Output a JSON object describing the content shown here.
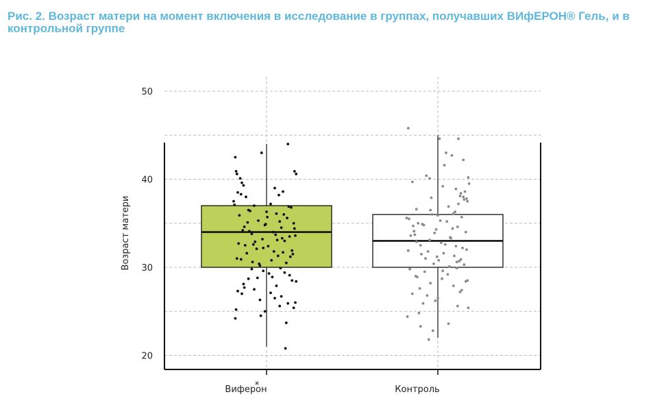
{
  "figure": {
    "title": "Рис. 2. Возраст матери на момент включения в исследование в группах, получавших ВИфЕРОН® Гель, и в контрольной группе"
  },
  "colors": {
    "title": "#5fb8dc",
    "viferon_box": "#bcd05a",
    "control_box": "#ffffff",
    "viferon_points": "#111111",
    "control_points": "#8a8a8a",
    "grid": "#bbbbbb"
  },
  "chart_data": {
    "type": "box",
    "ylabel": "Возраст матери",
    "xlabel": "",
    "ylim": [
      18.5,
      51
    ],
    "yticks": [
      20,
      30,
      40,
      50
    ],
    "grid": true,
    "categories": [
      "Виферон",
      "Контроль"
    ],
    "boxes": [
      {
        "category": "Виферон",
        "q1": 30,
        "median": 34,
        "q3": 37,
        "whisker_low": 21,
        "whisker_high": 44,
        "points": [
          42.5,
          40.9,
          40.6,
          40.1,
          39.6,
          39.3,
          38.5,
          38.3,
          38.0,
          43.0,
          44.0,
          40.9,
          40.6,
          39.0,
          38.6,
          38.2,
          37.5,
          37.2,
          37.0,
          36.8,
          36.5,
          36.1,
          35.9,
          35.6,
          35.3,
          35.0,
          34.8,
          34.5,
          34.2,
          34.0,
          33.8,
          33.5,
          33.2,
          33.0,
          32.7,
          32.4,
          32.1,
          31.9,
          31.6,
          31.3,
          31.0,
          30.8,
          30.5,
          30.2,
          36.4,
          35.2,
          34.6,
          33.6,
          32.9,
          31.8,
          30.9,
          36.9,
          35.7,
          34.1,
          33.3,
          32.2,
          31.5,
          30.6,
          37.1,
          36.0,
          34.9,
          33.1,
          32.5,
          31.2,
          29.9,
          29.6,
          29.4,
          29.1,
          28.9,
          28.7,
          28.4,
          28.1,
          27.9,
          27.5,
          27.3,
          27.1,
          26.7,
          26.3,
          26.0,
          25.9,
          25.6,
          25.2,
          25.0,
          24.5,
          24.2,
          23.7,
          20.8,
          29.8,
          28.5,
          27.7,
          26.5,
          25.4,
          29.3,
          28.8,
          27.0,
          36.3,
          35.1,
          34.4,
          33.7,
          32.6,
          31.7,
          30.4
        ],
        "jitter": [
          -0.38,
          -0.37,
          -0.36,
          -0.32,
          -0.3,
          -0.28,
          -0.35,
          -0.31,
          -0.25,
          -0.06,
          0.26,
          0.34,
          0.36,
          0.1,
          0.2,
          0.15,
          -0.4,
          0.05,
          -0.15,
          0.3,
          -0.22,
          0.12,
          -0.33,
          0.25,
          -0.1,
          0.33,
          -0.02,
          0.18,
          -0.29,
          0.08,
          -0.18,
          0.28,
          -0.05,
          0.22,
          -0.34,
          0.02,
          -0.12,
          0.31,
          -0.24,
          0.14,
          -0.36,
          0.06,
          0.24,
          -0.08,
          -0.2,
          0.16,
          -0.27,
          0.35,
          -0.14,
          0.09,
          -0.31,
          0.27,
          0.01,
          -0.21,
          0.19,
          -0.04,
          0.32,
          -0.17,
          -0.39,
          0.21,
          -0.01,
          0.13,
          -0.26,
          0.29,
          0.17,
          -0.04,
          0.22,
          0.28,
          0.07,
          -0.22,
          0.36,
          -0.28,
          0.12,
          -0.15,
          -0.35,
          0.05,
          0.18,
          -0.08,
          0.35,
          0.26,
          0.16,
          -0.37,
          -0.02,
          -0.07,
          -0.38,
          0.24,
          0.23,
          -0.18,
          0.31,
          -0.27,
          0.1,
          0.33,
          0.03,
          -0.11,
          -0.3,
          0.0,
          -0.23,
          0.34,
          0.11,
          -0.16,
          0.2,
          -0.09
        ]
      },
      {
        "category": "Контроль",
        "q1": 30,
        "median": 33,
        "q3": 36,
        "whisker_low": 22,
        "whisker_high": 45,
        "points": [
          45.8,
          44.6,
          44.6,
          43.0,
          42.7,
          42.2,
          41.6,
          40.4,
          40.1,
          39.7,
          39.5,
          39.2,
          38.6,
          38.1,
          38.0,
          37.8,
          37.5,
          36.9,
          36.6,
          36.3,
          36.0,
          35.7,
          35.5,
          35.2,
          34.9,
          34.6,
          34.3,
          34.0,
          33.7,
          33.4,
          33.1,
          32.8,
          32.5,
          32.2,
          31.9,
          31.6,
          31.3,
          31.0,
          30.7,
          30.4,
          30.1,
          35.9,
          35.0,
          34.4,
          33.6,
          32.6,
          31.8,
          30.9,
          35.3,
          34.1,
          32.4,
          31.2,
          30.3,
          29.8,
          29.5,
          29.2,
          29.0,
          28.7,
          28.5,
          28.2,
          27.9,
          27.6,
          27.2,
          27.0,
          26.5,
          26.2,
          25.9,
          25.4,
          24.8,
          24.4,
          23.6,
          23.3,
          22.8,
          21.8,
          30.6,
          33.9,
          36.1,
          34.7,
          32.0,
          29.6,
          28.9,
          27.4,
          26.8,
          25.6,
          37.2,
          38.4,
          37.7,
          36.5,
          35.6,
          34.8,
          33.3,
          32.9,
          31.5,
          30.8,
          29.9,
          28.4,
          40.2,
          38.9,
          37.9
        ],
        "jitter": [
          -0.36,
          0.02,
          0.25,
          0.1,
          0.17,
          0.31,
          0.08,
          -0.14,
          -0.1,
          -0.31,
          0.38,
          0.06,
          0.33,
          0.27,
          0.31,
          0.35,
          0.36,
          0.13,
          -0.26,
          0.21,
          -0.07,
          0.29,
          -0.35,
          0.11,
          -0.19,
          0.24,
          -0.02,
          0.34,
          -0.28,
          0.15,
          -0.1,
          0.04,
          -0.21,
          0.3,
          -0.36,
          0.07,
          0.2,
          -0.15,
          0.26,
          -0.05,
          0.14,
          0.0,
          -0.24,
          0.18,
          -0.33,
          0.09,
          -0.12,
          0.28,
          0.03,
          -0.29,
          0.22,
          -0.01,
          0.32,
          -0.34,
          -0.16,
          0.12,
          -0.27,
          0.05,
          0.36,
          -0.09,
          0.19,
          -0.22,
          0.27,
          -0.31,
          0.0,
          -0.03,
          -0.18,
          0.37,
          -0.23,
          -0.37,
          0.13,
          -0.21,
          -0.06,
          -0.11,
          0.23,
          -0.04,
          0.19,
          -0.3,
          0.35,
          0.06,
          -0.25,
          0.29,
          -0.13,
          0.24,
          0.25,
          0.28,
          0.32,
          -0.09,
          -0.38,
          -0.17,
          0.16,
          -0.26,
          -0.2,
          0.01,
          0.23,
          0.34,
          0.37,
          0.22,
          -0.08
        ]
      }
    ],
    "stray_marks": [
      "*"
    ]
  }
}
